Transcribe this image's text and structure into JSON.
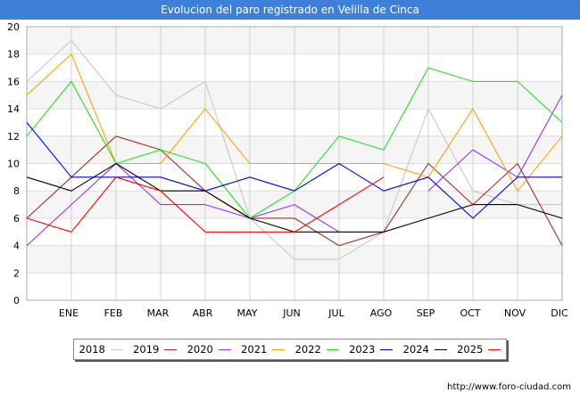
{
  "header": {
    "title": "Evolucion del paro registrado en Velilla de Cinca"
  },
  "footer": {
    "url": "http://www.foro-ciudad.com"
  },
  "chart_data": {
    "type": "line",
    "title": "Evolucion del paro registrado en Velilla de Cinca",
    "xlabel": "",
    "ylabel": "",
    "ylim": [
      0,
      20
    ],
    "yticks": [
      0,
      2,
      4,
      6,
      8,
      10,
      12,
      14,
      16,
      18,
      20
    ],
    "grid": true,
    "categories": [
      "",
      "ENE",
      "FEB",
      "MAR",
      "ABR",
      "MAY",
      "JUN",
      "JUL",
      "AGO",
      "SEP",
      "OCT",
      "NOV",
      "DIC"
    ],
    "legend_position": "bottom",
    "series": [
      {
        "name": "2018",
        "color": "#c8c8c8",
        "values": [
          16,
          19,
          15,
          14,
          16,
          6,
          3,
          3,
          5,
          14,
          8,
          7,
          7
        ]
      },
      {
        "name": "2019",
        "color": "#a52a2a",
        "values": [
          6,
          9,
          12,
          11,
          8,
          6,
          6,
          4,
          5,
          10,
          7,
          10,
          4
        ]
      },
      {
        "name": "2020",
        "color": "#9b30ff",
        "values": [
          4,
          7,
          10,
          7,
          7,
          6,
          7,
          5,
          null,
          8,
          11,
          9,
          15
        ]
      },
      {
        "name": "2021",
        "color": "#ffa500",
        "values": [
          15,
          18,
          10,
          10,
          14,
          10,
          10,
          10,
          10,
          9,
          14,
          8,
          12
        ]
      },
      {
        "name": "2022",
        "color": "#22e022",
        "values": [
          12,
          16,
          10,
          11,
          10,
          6,
          8,
          12,
          11,
          17,
          16,
          16,
          13
        ]
      },
      {
        "name": "2023",
        "color": "#0000ee",
        "values": [
          13,
          9,
          9,
          9,
          8,
          9,
          8,
          10,
          8,
          9,
          6,
          9,
          9
        ]
      },
      {
        "name": "2024",
        "color": "#000000",
        "values": [
          9,
          8,
          10,
          8,
          8,
          6,
          5,
          5,
          5,
          6,
          7,
          7,
          6
        ]
      },
      {
        "name": "2025",
        "color": "#ff0000",
        "values": [
          6,
          5,
          9,
          8,
          5,
          5,
          5,
          7,
          9,
          null,
          null,
          null,
          null
        ]
      }
    ]
  }
}
